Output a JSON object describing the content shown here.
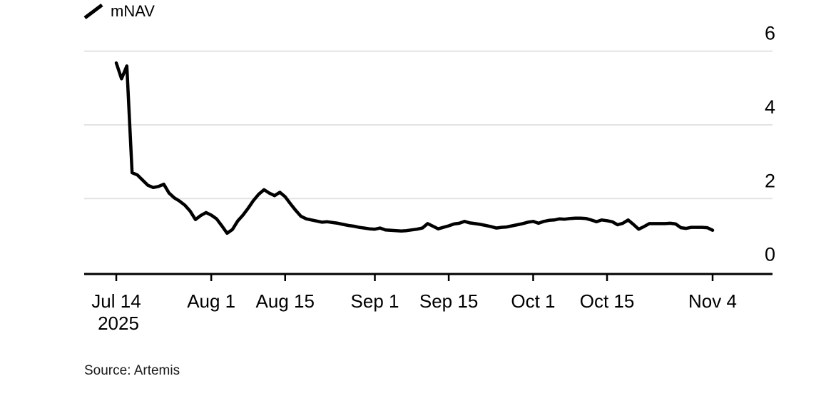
{
  "page": {
    "background_color": "#ffffff",
    "text_color": "#000000"
  },
  "legend": {
    "label": "mNAV",
    "marker": "diagonal-line-icon",
    "marker_color": "#000000"
  },
  "source": {
    "text": "Source: Artemis"
  },
  "chart_data": {
    "type": "line",
    "title": "",
    "series_name": "mNAV",
    "legend_entries": [
      "mNAV"
    ],
    "start_date": "2025-07-14",
    "end_date": "2025-11-04",
    "frequency": "daily",
    "values": [
      5.68,
      5.25,
      5.6,
      2.7,
      2.64,
      2.5,
      2.36,
      2.3,
      2.33,
      2.39,
      2.15,
      2.02,
      1.93,
      1.82,
      1.66,
      1.43,
      1.54,
      1.62,
      1.55,
      1.45,
      1.26,
      1.06,
      1.16,
      1.39,
      1.55,
      1.74,
      1.95,
      2.12,
      2.24,
      2.15,
      2.08,
      2.17,
      2.05,
      1.86,
      1.68,
      1.52,
      1.45,
      1.42,
      1.39,
      1.36,
      1.37,
      1.35,
      1.33,
      1.3,
      1.27,
      1.25,
      1.22,
      1.2,
      1.18,
      1.17,
      1.2,
      1.15,
      1.14,
      1.13,
      1.12,
      1.13,
      1.15,
      1.17,
      1.2,
      1.32,
      1.25,
      1.18,
      1.22,
      1.26,
      1.31,
      1.33,
      1.38,
      1.34,
      1.32,
      1.3,
      1.27,
      1.24,
      1.2,
      1.22,
      1.23,
      1.26,
      1.29,
      1.32,
      1.36,
      1.38,
      1.33,
      1.38,
      1.41,
      1.42,
      1.45,
      1.44,
      1.46,
      1.47,
      1.47,
      1.46,
      1.42,
      1.37,
      1.42,
      1.4,
      1.37,
      1.29,
      1.33,
      1.42,
      1.3,
      1.17,
      1.24,
      1.32,
      1.32,
      1.32,
      1.32,
      1.33,
      1.31,
      1.21,
      1.19,
      1.22,
      1.22,
      1.22,
      1.21,
      1.14
    ],
    "ylim": [
      0,
      6
    ],
    "yticks": [
      0,
      2,
      4,
      6
    ],
    "ytick_labels": [
      "0",
      "2",
      "4",
      "6"
    ],
    "ytick_side": "right",
    "grid": "horizontal",
    "x_ticks": [
      {
        "label": "Jul 14",
        "sublabel": "2025",
        "index": 0
      },
      {
        "label": "Aug 1",
        "index": 18
      },
      {
        "label": "Aug 15",
        "index": 32
      },
      {
        "label": "Sep 1",
        "index": 49
      },
      {
        "label": "Sep 15",
        "index": 63
      },
      {
        "label": "Oct 1",
        "index": 79
      },
      {
        "label": "Oct 15",
        "index": 93
      },
      {
        "label": "Nov 4",
        "index": 113
      }
    ],
    "line_color": "#000000",
    "axis_color": "#000000",
    "grid_color": "#e3e3e3",
    "source": "Source: Artemis"
  }
}
